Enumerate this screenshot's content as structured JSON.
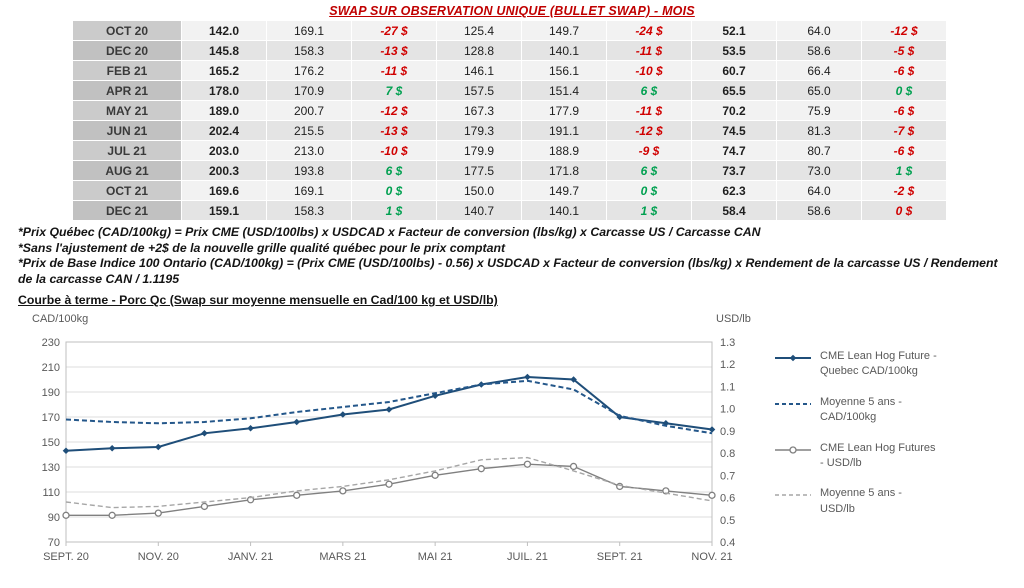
{
  "title": "SWAP SUR OBSERVATION UNIQUE (BULLET SWAP) - MOIS",
  "table": {
    "rows": [
      {
        "month": "OCT 20",
        "cells": [
          {
            "t": "142.0",
            "c": "b"
          },
          {
            "t": "169.1",
            "c": ""
          },
          {
            "t": "-27 $",
            "c": "neg"
          },
          {
            "t": "125.4",
            "c": ""
          },
          {
            "t": "149.7",
            "c": ""
          },
          {
            "t": "-24 $",
            "c": "neg"
          },
          {
            "t": "52.1",
            "c": "b"
          },
          {
            "t": "64.0",
            "c": ""
          },
          {
            "t": "-12 $",
            "c": "neg"
          }
        ]
      },
      {
        "month": "DEC 20",
        "cells": [
          {
            "t": "145.8",
            "c": "b"
          },
          {
            "t": "158.3",
            "c": ""
          },
          {
            "t": "-13 $",
            "c": "neg"
          },
          {
            "t": "128.8",
            "c": ""
          },
          {
            "t": "140.1",
            "c": ""
          },
          {
            "t": "-11 $",
            "c": "neg"
          },
          {
            "t": "53.5",
            "c": "b"
          },
          {
            "t": "58.6",
            "c": ""
          },
          {
            "t": "-5 $",
            "c": "neg"
          }
        ]
      },
      {
        "month": "FEB 21",
        "cells": [
          {
            "t": "165.2",
            "c": "b"
          },
          {
            "t": "176.2",
            "c": ""
          },
          {
            "t": "-11 $",
            "c": "neg"
          },
          {
            "t": "146.1",
            "c": ""
          },
          {
            "t": "156.1",
            "c": ""
          },
          {
            "t": "-10 $",
            "c": "neg"
          },
          {
            "t": "60.7",
            "c": "b"
          },
          {
            "t": "66.4",
            "c": ""
          },
          {
            "t": "-6 $",
            "c": "neg"
          }
        ]
      },
      {
        "month": "APR 21",
        "cells": [
          {
            "t": "178.0",
            "c": "b"
          },
          {
            "t": "170.9",
            "c": ""
          },
          {
            "t": "7 $",
            "c": "pos"
          },
          {
            "t": "157.5",
            "c": ""
          },
          {
            "t": "151.4",
            "c": ""
          },
          {
            "t": "6 $",
            "c": "pos"
          },
          {
            "t": "65.5",
            "c": "b"
          },
          {
            "t": "65.0",
            "c": ""
          },
          {
            "t": "0 $",
            "c": "pos"
          }
        ]
      },
      {
        "month": "MAY 21",
        "cells": [
          {
            "t": "189.0",
            "c": "b"
          },
          {
            "t": "200.7",
            "c": ""
          },
          {
            "t": "-12 $",
            "c": "neg"
          },
          {
            "t": "167.3",
            "c": ""
          },
          {
            "t": "177.9",
            "c": ""
          },
          {
            "t": "-11 $",
            "c": "neg"
          },
          {
            "t": "70.2",
            "c": "b"
          },
          {
            "t": "75.9",
            "c": ""
          },
          {
            "t": "-6 $",
            "c": "neg"
          }
        ]
      },
      {
        "month": "JUN 21",
        "cells": [
          {
            "t": "202.4",
            "c": "b"
          },
          {
            "t": "215.5",
            "c": ""
          },
          {
            "t": "-13 $",
            "c": "neg"
          },
          {
            "t": "179.3",
            "c": ""
          },
          {
            "t": "191.1",
            "c": ""
          },
          {
            "t": "-12 $",
            "c": "neg"
          },
          {
            "t": "74.5",
            "c": "b"
          },
          {
            "t": "81.3",
            "c": ""
          },
          {
            "t": "-7 $",
            "c": "neg"
          }
        ]
      },
      {
        "month": "JUL 21",
        "cells": [
          {
            "t": "203.0",
            "c": "b"
          },
          {
            "t": "213.0",
            "c": ""
          },
          {
            "t": "-10 $",
            "c": "neg"
          },
          {
            "t": "179.9",
            "c": ""
          },
          {
            "t": "188.9",
            "c": ""
          },
          {
            "t": "-9 $",
            "c": "neg"
          },
          {
            "t": "74.7",
            "c": "b"
          },
          {
            "t": "80.7",
            "c": ""
          },
          {
            "t": "-6 $",
            "c": "neg"
          }
        ]
      },
      {
        "month": "AUG 21",
        "cells": [
          {
            "t": "200.3",
            "c": "b"
          },
          {
            "t": "193.8",
            "c": ""
          },
          {
            "t": "6 $",
            "c": "pos"
          },
          {
            "t": "177.5",
            "c": ""
          },
          {
            "t": "171.8",
            "c": ""
          },
          {
            "t": "6 $",
            "c": "pos"
          },
          {
            "t": "73.7",
            "c": "b"
          },
          {
            "t": "73.0",
            "c": ""
          },
          {
            "t": "1 $",
            "c": "pos"
          }
        ]
      },
      {
        "month": "OCT 21",
        "cells": [
          {
            "t": "169.6",
            "c": "b"
          },
          {
            "t": "169.1",
            "c": ""
          },
          {
            "t": "0 $",
            "c": "pos"
          },
          {
            "t": "150.0",
            "c": ""
          },
          {
            "t": "149.7",
            "c": ""
          },
          {
            "t": "0 $",
            "c": "pos"
          },
          {
            "t": "62.3",
            "c": "b"
          },
          {
            "t": "64.0",
            "c": ""
          },
          {
            "t": "-2 $",
            "c": "neg"
          }
        ]
      },
      {
        "month": "DEC 21",
        "cells": [
          {
            "t": "159.1",
            "c": "b"
          },
          {
            "t": "158.3",
            "c": ""
          },
          {
            "t": "1 $",
            "c": "pos"
          },
          {
            "t": "140.7",
            "c": ""
          },
          {
            "t": "140.1",
            "c": ""
          },
          {
            "t": "1 $",
            "c": "pos"
          },
          {
            "t": "58.4",
            "c": "b"
          },
          {
            "t": "58.6",
            "c": ""
          },
          {
            "t": "0 $",
            "c": "neg"
          }
        ]
      }
    ]
  },
  "footnotes": [
    "*Prix Québec (CAD/100kg) = Prix CME (USD/100lbs) x USDCAD x Facteur de conversion (lbs/kg) x Carcasse US / Carcasse CAN",
    "*Sans l'ajustement de +2$ de la nouvelle grille qualité québec pour le prix comptant",
    "*Prix de Base Indice 100 Ontario (CAD/100kg) = (Prix CME (USD/100lbs) - 0.56) x USDCAD x Facteur de conversion (lbs/kg) x Rendement de la carcasse US / Rendement de la carcasse CAN / 1.1195"
  ],
  "section_title": "Courbe à terme - Porc Qc (Swap sur moyenne mensuelle en Cad/100 kg et USD/lb)",
  "colors": {
    "title_red": "#C00000",
    "negative": "#D00000",
    "positive": "#00A050",
    "cad_line": "#1F4E79",
    "cad_avg_line": "#24578A",
    "usd_line": "#808080",
    "usd_avg_line": "#A6A6A6"
  },
  "chart_data": {
    "type": "line",
    "title": "Courbe à terme - Porc Qc (Swap sur moyenne mensuelle en Cad/100 kg et USD/lb)",
    "points_per_series": 15,
    "x_tick_labels": [
      "SEPT. 20",
      "NOV. 20",
      "JANV. 21",
      "MARS 21",
      "MAI 21",
      "JUIL. 21",
      "SEPT. 21",
      "NOV. 21"
    ],
    "left_axis": {
      "label": "CAD/100kg",
      "min": 70,
      "max": 230,
      "step": 20
    },
    "right_axis": {
      "label": "USD/lb",
      "min": 0.4,
      "max": 1.3,
      "step": 0.1
    },
    "grid": "horizontal",
    "legend_position": "right",
    "series": [
      {
        "name": "CME Lean Hog Future - Quebec CAD/100kg",
        "axis": "left",
        "line": "solid",
        "marker": "diamond",
        "color": "#1F4E79",
        "values": [
          143,
          145,
          146,
          157,
          161,
          166,
          172,
          176,
          187,
          196,
          202,
          200,
          170,
          165,
          160
        ]
      },
      {
        "name": "Moyenne 5 ans - CAD/100kg",
        "axis": "left",
        "line": "dashed",
        "marker": "none",
        "color": "#24578A",
        "values": [
          168,
          166,
          165,
          166,
          169,
          174,
          178,
          182,
          189,
          196,
          199,
          192,
          171,
          163,
          157
        ]
      },
      {
        "name": "CME Lean Hog Futures - USD/lb",
        "axis": "right",
        "line": "solid",
        "marker": "circle",
        "color": "#808080",
        "values": [
          0.52,
          0.52,
          0.53,
          0.56,
          0.59,
          0.61,
          0.63,
          0.66,
          0.7,
          0.73,
          0.75,
          0.74,
          0.65,
          0.63,
          0.61
        ]
      },
      {
        "name": "Moyenne 5 ans - USD/lb",
        "axis": "right",
        "line": "dashed",
        "marker": "none",
        "color": "#A6A6A6",
        "values": [
          0.58,
          0.555,
          0.56,
          0.58,
          0.6,
          0.63,
          0.65,
          0.68,
          0.72,
          0.77,
          0.78,
          0.72,
          0.655,
          0.62,
          0.585
        ]
      }
    ]
  }
}
